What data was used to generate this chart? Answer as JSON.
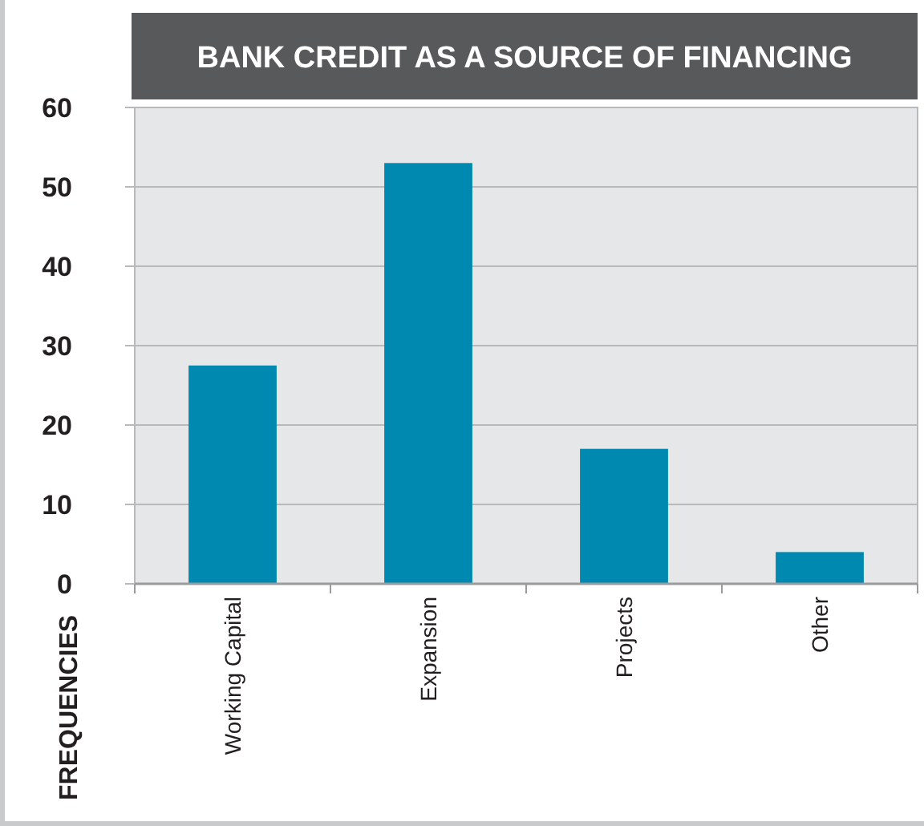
{
  "chart_data": {
    "type": "bar",
    "title": "BANK CREDIT AS A SOURCE OF FINANCING",
    "ylabel": "FREQUENCIES",
    "categories": [
      "Working Capital",
      "Expansion",
      "Projects",
      "Other"
    ],
    "values": [
      27.5,
      53,
      17,
      4
    ],
    "color": "#0089b0",
    "ylim": [
      0,
      60
    ],
    "yticks": [
      0,
      10,
      20,
      30,
      40,
      50,
      60
    ],
    "grid": "y"
  }
}
